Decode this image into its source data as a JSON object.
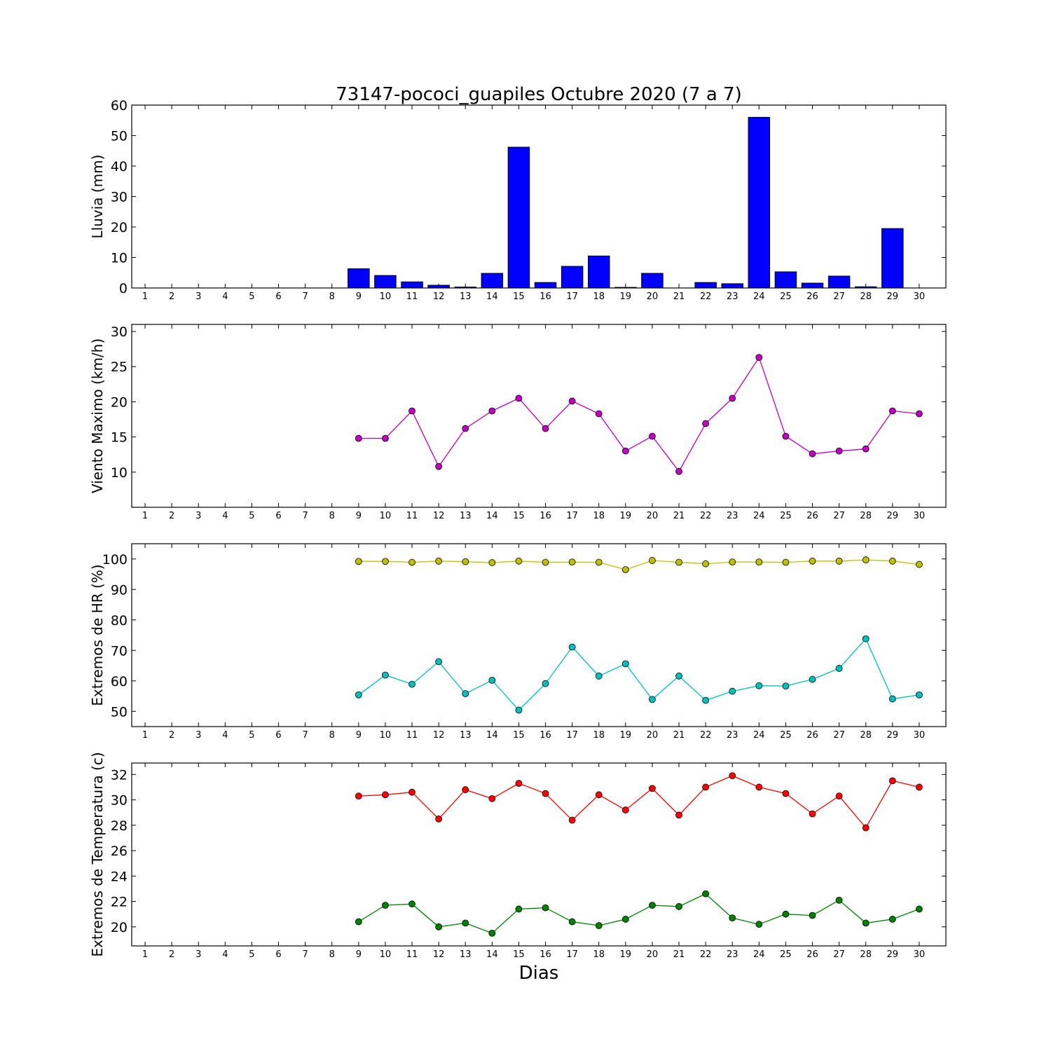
{
  "title": "73147-pococi_guapiles Octubre 2020  (7 a 7)",
  "xlabel": "Dias",
  "days": [
    "1",
    "2",
    "3",
    "4",
    "5",
    "6",
    "7",
    "8",
    "9",
    "10",
    "11",
    "12",
    "13",
    "14",
    "15",
    "16",
    "17",
    "18",
    "19",
    "20",
    "21",
    "22",
    "23",
    "24",
    "25",
    "26",
    "27",
    "28",
    "29",
    "30"
  ],
  "chart_data": [
    {
      "type": "bar",
      "ylabel": "Lluvia (mm)",
      "ylim": [
        0,
        60
      ],
      "yticks": [
        0,
        10,
        20,
        30,
        40,
        50,
        60
      ],
      "color": "#0000ff",
      "x": [
        9,
        10,
        11,
        12,
        13,
        14,
        15,
        16,
        17,
        18,
        19,
        20,
        21,
        22,
        23,
        24,
        25,
        26,
        27,
        28,
        29
      ],
      "values": [
        6.3,
        4.1,
        2.0,
        0.9,
        0.3,
        4.8,
        46.2,
        1.8,
        7.1,
        10.5,
        0.2,
        4.8,
        0.0,
        1.8,
        1.4,
        56.0,
        5.3,
        1.6,
        3.9,
        0.4,
        19.5
      ]
    },
    {
      "type": "line",
      "ylabel": "Viento Maximo (km/h)",
      "ylim": [
        5,
        31
      ],
      "yticks": [
        10,
        15,
        20,
        25,
        30
      ],
      "x": [
        9,
        10,
        11,
        12,
        13,
        14,
        15,
        16,
        17,
        18,
        19,
        20,
        21,
        22,
        23,
        24,
        25,
        26,
        27,
        28,
        29,
        30
      ],
      "series": [
        {
          "color": "#bf00bf",
          "values": [
            14.8,
            14.8,
            18.7,
            10.8,
            16.2,
            18.7,
            20.5,
            16.2,
            20.1,
            18.3,
            13.0,
            15.1,
            10.1,
            16.9,
            20.5,
            26.3,
            15.1,
            12.6,
            13.0,
            13.3,
            18.7,
            18.3
          ]
        }
      ]
    },
    {
      "type": "line",
      "ylabel": "Extremos de HR (%)",
      "ylim": [
        45,
        105
      ],
      "yticks": [
        50,
        60,
        70,
        80,
        90,
        100
      ],
      "x": [
        9,
        10,
        11,
        12,
        13,
        14,
        15,
        16,
        17,
        18,
        19,
        20,
        21,
        22,
        23,
        24,
        25,
        26,
        27,
        28,
        29,
        30
      ],
      "series": [
        {
          "color": "#bfbf00",
          "values": [
            99.2,
            99.2,
            98.9,
            99.3,
            99.1,
            98.8,
            99.3,
            98.9,
            99.0,
            98.9,
            96.5,
            99.5,
            98.9,
            98.4,
            99.0,
            99.0,
            98.9,
            99.3,
            99.3,
            99.7,
            99.3,
            98.2
          ]
        },
        {
          "color": "#00bfbf",
          "values": [
            55.4,
            61.9,
            58.9,
            66.3,
            55.8,
            60.2,
            50.4,
            59.1,
            71.1,
            61.6,
            65.6,
            53.9,
            61.6,
            53.6,
            56.6,
            58.4,
            58.3,
            60.5,
            64.1,
            73.8,
            54.1,
            55.4
          ]
        }
      ]
    },
    {
      "type": "line",
      "ylabel": "Extremos de Temperatura (c)",
      "ylim": [
        18.5,
        32.9
      ],
      "yticks": [
        20,
        22,
        24,
        26,
        28,
        30,
        32
      ],
      "x": [
        9,
        10,
        11,
        12,
        13,
        14,
        15,
        16,
        17,
        18,
        19,
        20,
        21,
        22,
        23,
        24,
        25,
        26,
        27,
        28,
        29,
        30
      ],
      "series": [
        {
          "color": "#ff0000",
          "values": [
            30.3,
            30.4,
            30.6,
            28.5,
            30.8,
            30.1,
            31.3,
            30.5,
            28.4,
            30.4,
            29.2,
            30.9,
            28.8,
            31.0,
            31.9,
            31.0,
            30.5,
            28.9,
            30.3,
            27.8,
            31.5,
            31.0
          ]
        },
        {
          "color": "#008000",
          "values": [
            20.4,
            21.7,
            21.8,
            20.0,
            20.3,
            19.5,
            21.4,
            21.5,
            20.4,
            20.1,
            20.6,
            21.7,
            21.6,
            22.6,
            20.7,
            20.2,
            21.0,
            20.9,
            22.1,
            20.3,
            20.6,
            21.4
          ]
        }
      ]
    }
  ]
}
